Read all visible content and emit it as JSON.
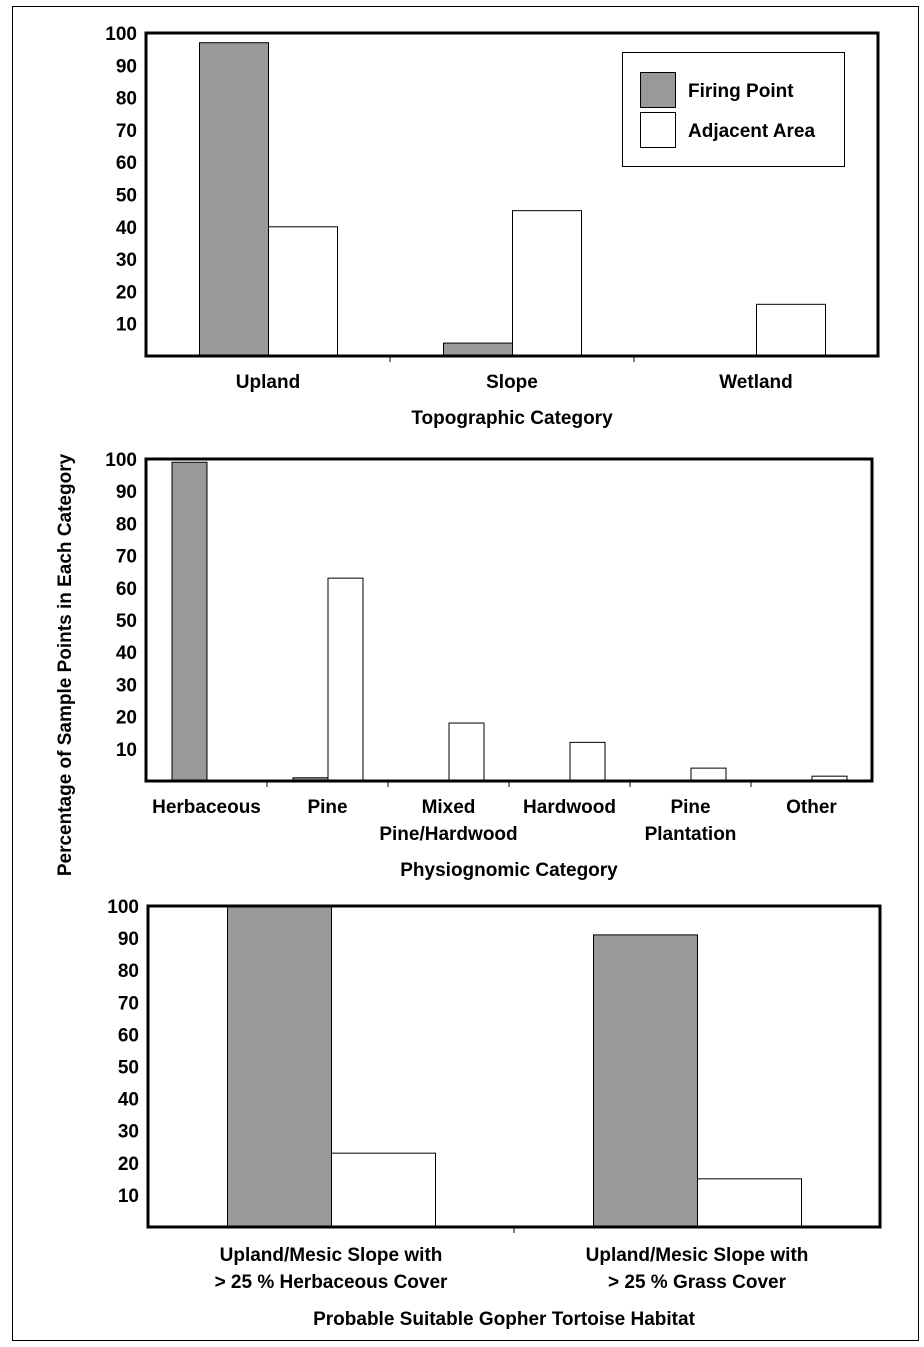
{
  "y_axis_label": "Percentage of Sample Points in Each Category",
  "legend": [
    {
      "label": "Firing Point",
      "color": "#999999"
    },
    {
      "label": "Adjacent Area",
      "color": "#ffffff"
    }
  ],
  "chart_data": [
    {
      "type": "bar",
      "xlabel": "Topographic Category",
      "ylabel": "Percentage of Sample Points in Each Category",
      "ylim": [
        0,
        100
      ],
      "yticks": [
        10,
        20,
        30,
        40,
        50,
        60,
        70,
        80,
        90,
        100
      ],
      "grid": false,
      "legend_position": "top-right",
      "categories": [
        [
          "Upland"
        ],
        [
          "Slope"
        ],
        [
          "Wetland"
        ]
      ],
      "series": [
        {
          "name": "Firing Point",
          "color": "#999999",
          "values": [
            97,
            4,
            0
          ]
        },
        {
          "name": "Adjacent Area",
          "color": "#ffffff",
          "values": [
            40,
            45,
            16
          ]
        }
      ]
    },
    {
      "type": "bar",
      "xlabel": "Physiognomic Category",
      "ylabel": "Percentage of Sample Points in Each Category",
      "ylim": [
        0,
        100
      ],
      "yticks": [
        10,
        20,
        30,
        40,
        50,
        60,
        70,
        80,
        90,
        100
      ],
      "grid": false,
      "categories": [
        [
          "Herbaceous"
        ],
        [
          "Pine"
        ],
        [
          "Mixed",
          "Pine/Hardwood"
        ],
        [
          "Hardwood"
        ],
        [
          "Pine",
          "Plantation"
        ],
        [
          "Other"
        ]
      ],
      "series": [
        {
          "name": "Firing Point",
          "color": "#999999",
          "values": [
            99,
            1,
            0,
            0,
            0,
            0
          ]
        },
        {
          "name": "Adjacent Area",
          "color": "#ffffff",
          "values": [
            0,
            63,
            18,
            12,
            4,
            1.5
          ]
        }
      ]
    },
    {
      "type": "bar",
      "xlabel": "Probable Suitable Gopher Tortoise Habitat",
      "ylabel": "Percentage of Sample Points in Each Category",
      "ylim": [
        0,
        100
      ],
      "yticks": [
        10,
        20,
        30,
        40,
        50,
        60,
        70,
        80,
        90,
        100
      ],
      "grid": false,
      "categories": [
        [
          "Upland/Mesic Slope with",
          "> 25 % Herbaceous Cover"
        ],
        [
          "Upland/Mesic Slope with",
          "> 25 % Grass Cover"
        ]
      ],
      "series": [
        {
          "name": "Firing Point",
          "color": "#999999",
          "values": [
            100,
            91
          ]
        },
        {
          "name": "Adjacent Area",
          "color": "#ffffff",
          "values": [
            23,
            15
          ]
        }
      ]
    }
  ]
}
